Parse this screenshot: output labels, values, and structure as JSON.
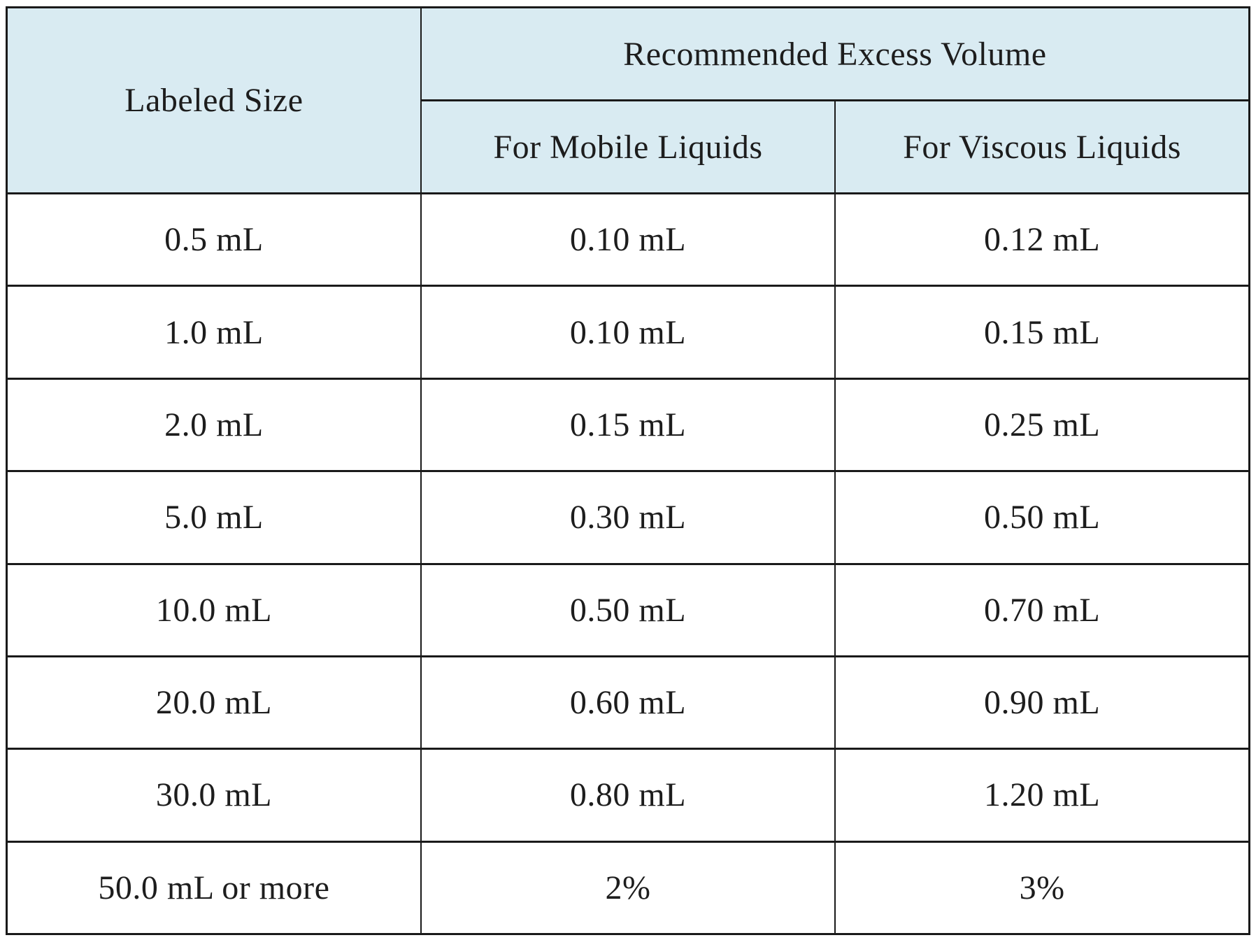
{
  "chart_data": {
    "type": "table",
    "title": "",
    "header": {
      "col1": "Labeled Size",
      "group": "Recommended Excess Volume",
      "subcols": [
        "For Mobile Liquids",
        "For Viscous Liquids"
      ]
    },
    "rows": [
      [
        "0.5 mL",
        "0.10 mL",
        "0.12 mL"
      ],
      [
        "1.0 mL",
        "0.10 mL",
        "0.15 mL"
      ],
      [
        "2.0 mL",
        "0.15 mL",
        "0.25 mL"
      ],
      [
        "5.0 mL",
        "0.30 mL",
        "0.50 mL"
      ],
      [
        "10.0 mL",
        "0.50 mL",
        "0.70 mL"
      ],
      [
        "20.0 mL",
        "0.60 mL",
        "0.90 mL"
      ],
      [
        "30.0 mL",
        "0.80 mL",
        "1.20 mL"
      ],
      [
        "50.0 mL or more",
        "2%",
        "3%"
      ]
    ],
    "layout": {
      "columns": 3,
      "header_rows": 2,
      "data_rows": 8,
      "grid": "on",
      "column_widths": "equal"
    }
  },
  "style": {
    "header_bg": "#d9ebf2",
    "row_bg": "#ffffff",
    "border_color": "#1a1a1a",
    "text_color": "#1d1d1d",
    "page_bg": "#ffffff"
  }
}
